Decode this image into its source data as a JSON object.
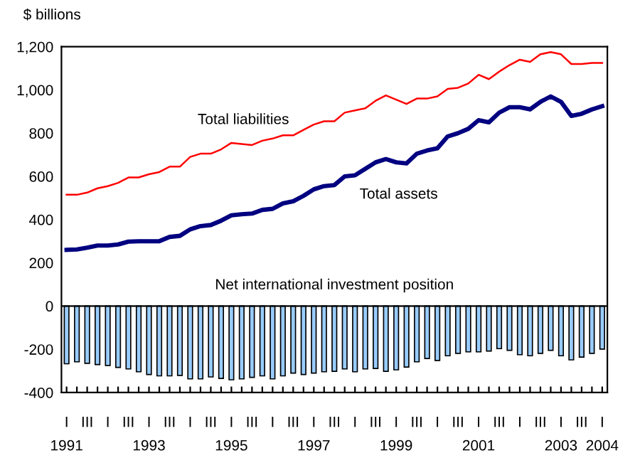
{
  "chart_data": {
    "type": "line",
    "ylabel": "$ billions",
    "categories": [
      "I\n1991",
      null,
      "III",
      null,
      "I",
      null,
      "III",
      null,
      "I\n1993",
      null,
      "III",
      null,
      "I",
      null,
      "III",
      null,
      "I\n1995",
      null,
      "III",
      null,
      "I",
      null,
      "III",
      null,
      "I\n1997",
      null,
      "III",
      null,
      "I",
      null,
      "III",
      null,
      "I\n1999",
      null,
      "III",
      null,
      "I",
      null,
      "III",
      null,
      "I\n2001",
      null,
      "III",
      null,
      "I",
      null,
      "III",
      null,
      "I\n2003",
      null,
      "III",
      null,
      "I\n2004"
    ],
    "series": [
      {
        "name": "Net international investment position",
        "type": "bar",
        "color": "#99ccff",
        "values": [
          -267,
          -258,
          -265,
          -271,
          -275,
          -284,
          -291,
          -304,
          -317,
          -323,
          -323,
          -321,
          -337,
          -337,
          -328,
          -335,
          -341,
          -337,
          -330,
          -323,
          -337,
          -323,
          -310,
          -317,
          -310,
          -304,
          -302,
          -291,
          -304,
          -291,
          -289,
          -302,
          -295,
          -282,
          -258,
          -243,
          -252,
          -230,
          -219,
          -212,
          -212,
          -208,
          -197,
          -205,
          -225,
          -230,
          -219,
          -205,
          -230,
          -249,
          -236,
          -219,
          -199
        ]
      },
      {
        "name": "Total liabilities",
        "color": "#ff0000",
        "values": [
          515,
          515,
          525,
          545,
          555,
          570,
          595,
          595,
          610,
          620,
          645,
          645,
          690,
          705,
          705,
          725,
          755,
          750,
          745,
          765,
          775,
          790,
          790,
          815,
          840,
          855,
          855,
          895,
          905,
          915,
          950,
          975,
          955,
          935,
          960,
          960,
          970,
          1005,
          1010,
          1030,
          1070,
          1050,
          1085,
          1115,
          1140,
          1130,
          1165,
          1175,
          1165,
          1120,
          1120,
          1125,
          1125
        ]
      },
      {
        "name": "Total assets",
        "color": "#000080",
        "values": [
          260,
          262,
          270,
          280,
          280,
          285,
          298,
          300,
          300,
          300,
          320,
          325,
          355,
          370,
          375,
          395,
          420,
          425,
          428,
          445,
          450,
          475,
          485,
          510,
          540,
          555,
          560,
          600,
          605,
          635,
          665,
          680,
          665,
          660,
          705,
          720,
          730,
          785,
          800,
          820,
          860,
          850,
          895,
          920,
          920,
          910,
          945,
          970,
          945,
          880,
          890,
          910,
          925
        ]
      }
    ],
    "ylim": [
      -400,
      1200
    ],
    "yticks": [
      -400,
      -200,
      0,
      200,
      400,
      600,
      800,
      {
        "value": 1000,
        "label": "1,000"
      },
      {
        "value": 1200,
        "label": "1,200"
      }
    ],
    "ref_lines": [
      {
        "axis": "y",
        "value": 0,
        "color": "#000000"
      }
    ],
    "grid": false,
    "legend": false
  }
}
